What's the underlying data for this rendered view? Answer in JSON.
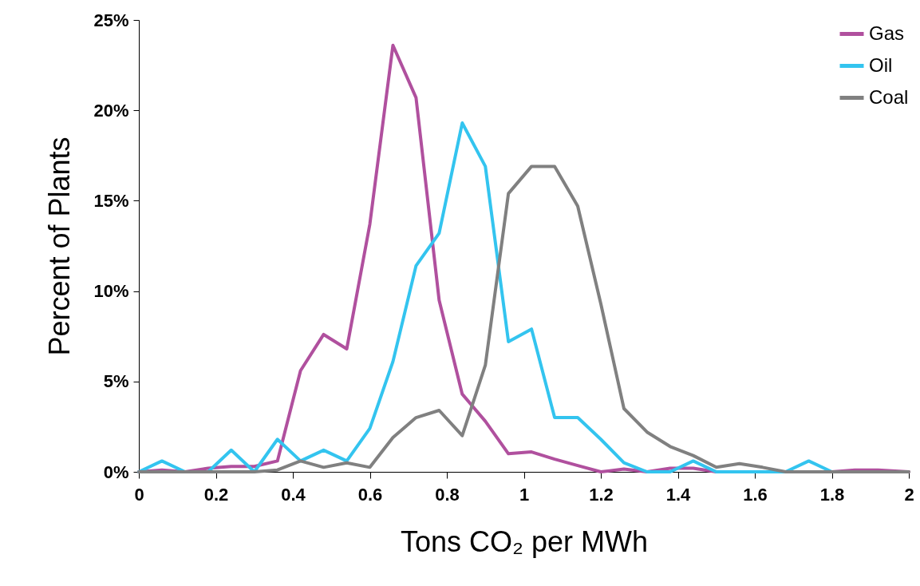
{
  "chart_data": {
    "type": "line",
    "xlabel": "Tons CO₂ per MWh",
    "ylabel": "Percent of Plants",
    "x": [
      0,
      0.06,
      0.12,
      0.18,
      0.24,
      0.3,
      0.36,
      0.42,
      0.48,
      0.54,
      0.6,
      0.66,
      0.72,
      0.78,
      0.84,
      0.9,
      0.96,
      1.02,
      1.08,
      1.14,
      1.2,
      1.26,
      1.32,
      1.38,
      1.44,
      1.5,
      1.56,
      1.62,
      1.68,
      1.74,
      1.8,
      1.86,
      1.92,
      2
    ],
    "series": [
      {
        "name": "Gas",
        "color": "#b0509e",
        "values": [
          0,
          0.1,
          0,
          0.2,
          0.3,
          0.3,
          0.6,
          5.6,
          7.6,
          6.8,
          13.7,
          23.6,
          20.7,
          9.5,
          4.3,
          2.8,
          1.0,
          1.1,
          0.7,
          0.35,
          0,
          0.15,
          0,
          0.2,
          0.2,
          0,
          0,
          0,
          0,
          0,
          0,
          0.1,
          0.1,
          0
        ]
      },
      {
        "name": "Oil",
        "color": "#33c4ef",
        "values": [
          0,
          0.6,
          0,
          0,
          1.2,
          0,
          1.8,
          0.6,
          1.2,
          0.6,
          2.4,
          6.1,
          11.4,
          13.2,
          19.3,
          16.9,
          7.2,
          7.9,
          3.0,
          3.0,
          1.8,
          0.5,
          0,
          0,
          0.6,
          0,
          0,
          0,
          0,
          0.6,
          0,
          0,
          null,
          null
        ]
      },
      {
        "name": "Coal",
        "color": "#808080",
        "values": [
          0,
          0,
          0,
          0,
          0,
          0,
          0.1,
          0.6,
          0.25,
          0.5,
          0.25,
          1.9,
          3.0,
          3.4,
          2.0,
          5.9,
          15.4,
          16.9,
          16.9,
          14.7,
          9.3,
          3.5,
          2.2,
          1.4,
          0.9,
          0.25,
          0.45,
          0.25,
          0,
          0,
          0,
          0,
          0,
          0
        ]
      }
    ],
    "xlim": [
      0,
      2
    ],
    "xticks": [
      0,
      0.2,
      0.4,
      0.6,
      0.8,
      1,
      1.2,
      1.4,
      1.6,
      1.8,
      2
    ],
    "ylim": [
      0,
      25
    ],
    "yticks": [
      {
        "value": 0,
        "label": "0%"
      },
      {
        "value": 5,
        "label": "5%"
      },
      {
        "value": 10,
        "label": "10%"
      },
      {
        "value": 15,
        "label": "15%"
      },
      {
        "value": 20,
        "label": "20%"
      },
      {
        "value": 25,
        "label": "25%"
      }
    ],
    "legend": "top right",
    "marker": "none",
    "line_style": "solid",
    "grid": false
  }
}
